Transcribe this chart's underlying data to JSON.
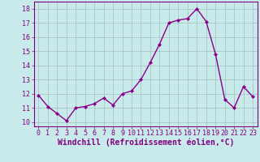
{
  "x": [
    0,
    1,
    2,
    3,
    4,
    5,
    6,
    7,
    8,
    9,
    10,
    11,
    12,
    13,
    14,
    15,
    16,
    17,
    18,
    19,
    20,
    21,
    22,
    23
  ],
  "y": [
    11.9,
    11.1,
    10.6,
    10.1,
    11.0,
    11.1,
    11.3,
    11.7,
    11.2,
    12.0,
    12.2,
    13.0,
    14.2,
    15.5,
    17.0,
    17.2,
    17.3,
    18.0,
    17.1,
    14.8,
    11.6,
    11.0,
    12.5,
    11.8
  ],
  "line_color": "#8B008B",
  "marker": "D",
  "marker_size": 2.0,
  "linewidth": 1.0,
  "bg_color": "#c8eaea",
  "plot_bg_color": "#c8eaea",
  "grid_color": "#a0c0c0",
  "xlabel": "Windchill (Refroidissement éolien,°C)",
  "xlabel_fontsize": 7,
  "ylabel_ticks": [
    10,
    11,
    12,
    13,
    14,
    15,
    16,
    17,
    18
  ],
  "xlim": [
    -0.5,
    23.5
  ],
  "ylim": [
    9.7,
    18.5
  ],
  "xtick_labels": [
    "0",
    "1",
    "2",
    "3",
    "4",
    "5",
    "6",
    "7",
    "8",
    "9",
    "10",
    "11",
    "12",
    "13",
    "14",
    "15",
    "16",
    "17",
    "18",
    "19",
    "20",
    "21",
    "22",
    "23"
  ],
  "tick_fontsize": 6.0,
  "tick_color": "#800080",
  "spine_color": "#800080",
  "xlabel_bold": true
}
